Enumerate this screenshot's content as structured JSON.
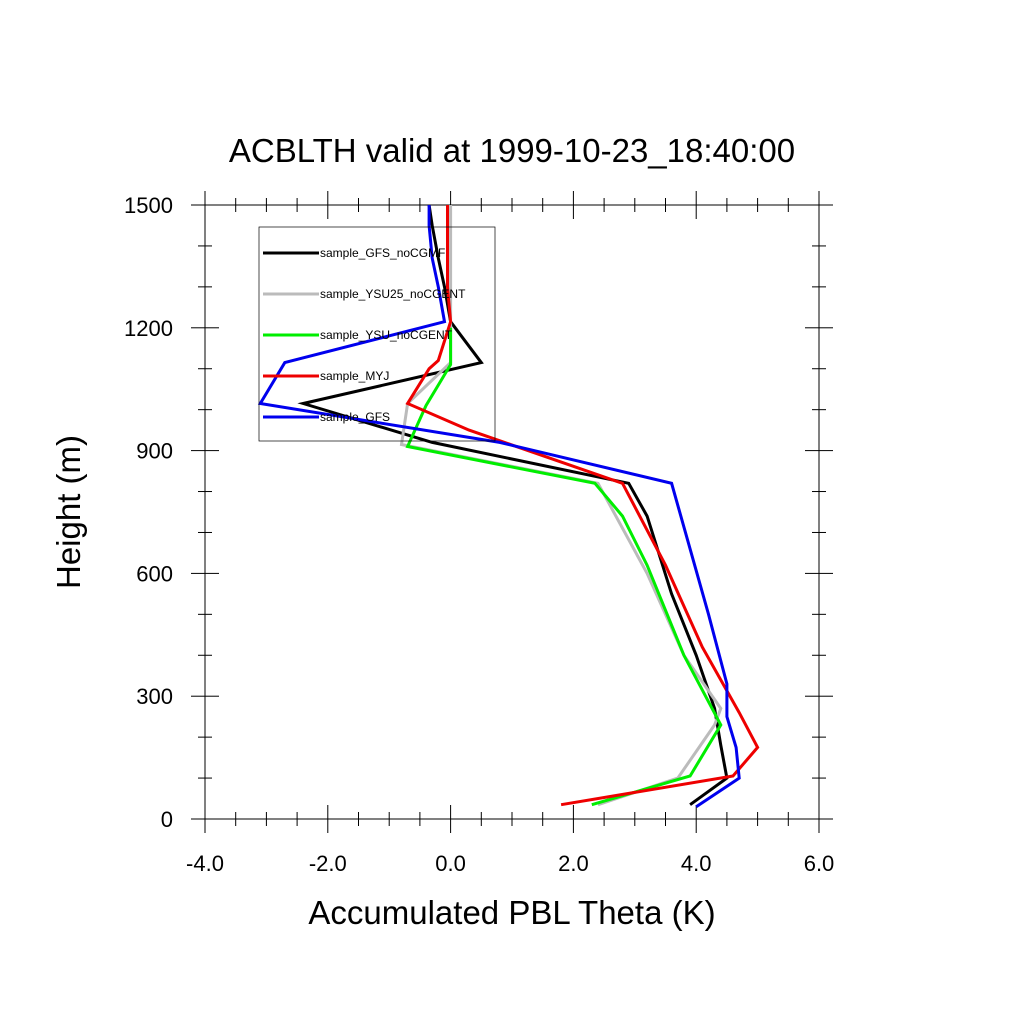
{
  "chart_data": {
    "type": "line",
    "title": "ACBLTH valid at 1999-10-23_18:40:00",
    "xlabel": "Accumulated PBL Theta (K)",
    "ylabel": "Height (m)",
    "xlim": [
      -4.0,
      6.0
    ],
    "ylim": [
      0,
      1500
    ],
    "xticks": [
      -4.0,
      -2.0,
      0.0,
      2.0,
      4.0,
      6.0
    ],
    "xtick_labels": [
      "-4.0",
      "-2.0",
      "0.0",
      "2.0",
      "4.0",
      "6.0"
    ],
    "yticks": [
      0,
      300,
      600,
      900,
      1200,
      1500
    ],
    "ytick_labels": [
      "0",
      "300",
      "600",
      "900",
      "1200",
      "1500"
    ],
    "legend_position": "top-left",
    "series": [
      {
        "name": "sample_GFS_noCGMF",
        "color": "#000000",
        "x": [
          3.9,
          4.5,
          4.4,
          4.3,
          4.0,
          3.6,
          3.2,
          2.9,
          -0.3,
          -2.4,
          0.5,
          0.0,
          -0.1,
          -0.2,
          -0.3,
          -0.35
        ],
        "y": [
          35,
          100,
          180,
          270,
          400,
          550,
          740,
          820,
          920,
          1015,
          1115,
          1215,
          1300,
          1370,
          1450,
          1500
        ]
      },
      {
        "name": "sample_YSU25_noCGENT",
        "color": "#bbbbbb",
        "x": [
          2.4,
          3.7,
          4.3,
          4.4,
          3.8,
          3.2,
          2.4,
          -0.8,
          -0.7,
          0.0,
          0.0,
          0.0
        ],
        "y": [
          35,
          100,
          230,
          270,
          400,
          600,
          820,
          915,
          1015,
          1115,
          1215,
          1500
        ]
      },
      {
        "name": "sample_YSU_noCGENT",
        "color": "#00ee00",
        "x": [
          2.3,
          3.9,
          4.4,
          3.8,
          3.2,
          2.8,
          2.35,
          -0.7,
          -0.4,
          0.0,
          0.0
        ],
        "y": [
          35,
          105,
          230,
          400,
          620,
          740,
          820,
          910,
          1010,
          1110,
          1200
        ]
      },
      {
        "name": "sample_MYJ",
        "color": "#ee0000",
        "x": [
          1.8,
          4.6,
          5.0,
          4.7,
          4.1,
          3.5,
          2.8,
          0.3,
          -0.7,
          -0.35,
          -0.2,
          0.0,
          -0.05,
          -0.05
        ],
        "y": [
          35,
          105,
          175,
          260,
          420,
          620,
          820,
          950,
          1015,
          1100,
          1120,
          1215,
          1300,
          1500
        ]
      },
      {
        "name": "sample_GFS",
        "color": "#0000ee",
        "x": [
          4.0,
          4.7,
          4.65,
          4.5,
          4.5,
          4.2,
          3.6,
          0.8,
          -3.1,
          -2.7,
          -0.1,
          -0.2,
          -0.3,
          -0.35,
          -0.35
        ],
        "y": [
          30,
          100,
          175,
          250,
          330,
          500,
          820,
          920,
          1015,
          1115,
          1215,
          1300,
          1370,
          1450,
          1500
        ]
      }
    ]
  }
}
